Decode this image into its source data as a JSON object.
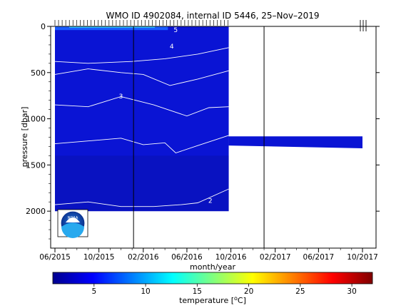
{
  "chart_data": {
    "type": "heatmap",
    "title": "WMO ID 4902084, internal ID 5446, 25–Nov–2019",
    "xlabel": "month/year",
    "ylabel": "pressure [dbar]",
    "x_ticks": [
      "06/2015",
      "10/2015",
      "02/2016",
      "06/2016",
      "10/2016",
      "02/2017",
      "06/2017",
      "10/2017"
    ],
    "x_tick_dates": [
      "2015-06-01",
      "2015-10-01",
      "2016-02-01",
      "2016-06-01",
      "2016-10-01",
      "2017-02-01",
      "2017-06-01",
      "2017-10-01"
    ],
    "y_ticks": [
      0,
      500,
      1000,
      1500,
      2000
    ],
    "ylim": [
      2400,
      0
    ],
    "y_inverted": true,
    "vertical_lines": [
      "2016-01-05",
      "2017-01-01"
    ],
    "profile_dates_marked_at_top": true,
    "isotherm_labels": [
      {
        "text": "4",
        "date": "2016-04-20",
        "pressure": 240
      },
      {
        "text": "3",
        "date": "2015-12-01",
        "pressure": 780
      },
      {
        "text": "2",
        "date": "2016-08-05",
        "pressure": 1910
      },
      {
        "text": "5",
        "date": "2016-05-01",
        "pressure": 60
      }
    ],
    "isotherms": [
      {
        "temperature": 4,
        "points": [
          [
            "2015-06-01",
            380
          ],
          [
            "2015-09-01",
            400
          ],
          [
            "2016-01-01",
            380
          ],
          [
            "2016-04-01",
            350
          ],
          [
            "2016-07-01",
            300
          ],
          [
            "2016-09-25",
            230
          ]
        ]
      },
      {
        "temperature": 3.5,
        "points": [
          [
            "2015-06-01",
            520
          ],
          [
            "2015-09-01",
            460
          ],
          [
            "2015-12-01",
            500
          ],
          [
            "2016-02-01",
            520
          ],
          [
            "2016-04-15",
            640
          ],
          [
            "2016-07-01",
            570
          ],
          [
            "2016-09-25",
            480
          ]
        ]
      },
      {
        "temperature": 3,
        "points": [
          [
            "2015-06-01",
            850
          ],
          [
            "2015-09-01",
            870
          ],
          [
            "2015-12-01",
            760
          ],
          [
            "2016-03-01",
            850
          ],
          [
            "2016-06-01",
            970
          ],
          [
            "2016-08-01",
            880
          ],
          [
            "2016-09-25",
            870
          ]
        ]
      },
      {
        "temperature": 2.5,
        "points": [
          [
            "2015-06-01",
            1270
          ],
          [
            "2015-09-01",
            1240
          ],
          [
            "2015-12-01",
            1210
          ],
          [
            "2016-02-01",
            1280
          ],
          [
            "2016-04-01",
            1260
          ],
          [
            "2016-05-01",
            1370
          ],
          [
            "2016-07-01",
            1290
          ],
          [
            "2016-09-25",
            1180
          ]
        ]
      },
      {
        "temperature": 2,
        "points": [
          [
            "2015-06-01",
            1930
          ],
          [
            "2015-09-01",
            1900
          ],
          [
            "2015-12-01",
            1950
          ],
          [
            "2016-03-01",
            1950
          ],
          [
            "2016-05-15",
            1930
          ],
          [
            "2016-07-01",
            1910
          ],
          [
            "2016-09-25",
            1760
          ]
        ]
      }
    ],
    "data_coverage": [
      {
        "from": "2015-06-01",
        "to": "2016-09-25",
        "pressure_top": 0,
        "pressure_bottom": 2000
      },
      {
        "from": "2016-09-25",
        "to": "2017-10-01",
        "band_pressure_top": 1190,
        "band_pressure_bottom": 1330
      }
    ],
    "colorbar": {
      "label": "temperature [°C]",
      "label_main": "temperature [",
      "label_sup": "o",
      "label_unit": "C]",
      "range": [
        1,
        32
      ],
      "ticks": [
        5,
        10,
        15,
        20,
        25,
        30
      ],
      "colormap": "jet"
    },
    "grid": false,
    "logo": "noaa-logo"
  }
}
